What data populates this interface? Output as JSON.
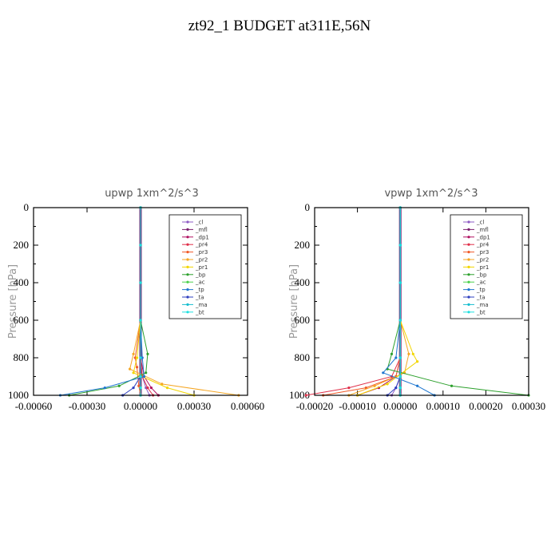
{
  "title": "zt92_1  BUDGET at311E,56N",
  "legend_entries": [
    {
      "name": "_cl",
      "color": "#8e5bc4"
    },
    {
      "name": "_mfl",
      "color": "#7a1f6e"
    },
    {
      "name": "_dp1",
      "color": "#b01060"
    },
    {
      "name": "_pr4",
      "color": "#e0304a"
    },
    {
      "name": "_pr3",
      "color": "#f05a28"
    },
    {
      "name": "_pr2",
      "color": "#f5a623"
    },
    {
      "name": "_pr1",
      "color": "#f2d600"
    },
    {
      "name": "_bp",
      "color": "#2ca02c"
    },
    {
      "name": "_ac",
      "color": "#4bd14b"
    },
    {
      "name": "_tp",
      "color": "#1f77d0"
    },
    {
      "name": "_ta",
      "color": "#2f3fbf"
    },
    {
      "name": "_ma",
      "color": "#17becf"
    },
    {
      "name": "_bt",
      "color": "#20e0e0"
    }
  ],
  "chart_data": [
    {
      "type": "line",
      "title": "upwp   1xm^2/s^3",
      "ylabel": "Pressure [hPa]",
      "xlim": [
        -0.0006,
        0.0006
      ],
      "ylim": [
        1000,
        0
      ],
      "xticks": [
        -0.0006,
        -0.0003,
        0.0,
        0.0003,
        0.0006
      ],
      "xtick_labels": [
        "-0.00060",
        "-0.00030",
        "0.00000",
        "0.00030",
        "0.00060"
      ],
      "yticks": [
        0,
        200,
        400,
        600,
        800,
        1000
      ],
      "ytick_labels": [
        "0",
        "200",
        "400",
        "600",
        "800",
        "1000"
      ],
      "legend_position": "top-right",
      "series": [
        {
          "name": "_cl",
          "x": [
            0,
            0,
            0,
            0,
            0,
            1e-05,
            3e-05,
            5e-05
          ],
          "y": [
            0,
            200,
            400,
            600,
            800,
            900,
            960,
            1000
          ]
        },
        {
          "name": "_mfl",
          "x": [
            0,
            0,
            0,
            0,
            0,
            0,
            0,
            0
          ],
          "y": [
            0,
            200,
            400,
            600,
            800,
            900,
            960,
            1000
          ]
        },
        {
          "name": "_dp1",
          "x": [
            0,
            0,
            0,
            0,
            0,
            2e-05,
            6e-05,
            0.0001
          ],
          "y": [
            0,
            200,
            400,
            600,
            800,
            900,
            960,
            1000
          ]
        },
        {
          "name": "_pr4",
          "x": [
            0,
            0,
            0,
            0,
            0,
            1e-05,
            4e-05,
            7e-05
          ],
          "y": [
            0,
            200,
            400,
            600,
            800,
            900,
            960,
            1000
          ]
        },
        {
          "name": "_pr3",
          "x": [
            0,
            0,
            0,
            0,
            -3e-05,
            -2e-05,
            -1e-05,
            0
          ],
          "y": [
            0,
            200,
            400,
            600,
            800,
            850,
            950,
            1000
          ]
        },
        {
          "name": "_pr2",
          "x": [
            0,
            0,
            0,
            0,
            -4e-05,
            -6e-05,
            0.00012,
            0.00055
          ],
          "y": [
            0,
            200,
            400,
            600,
            780,
            860,
            940,
            1000
          ]
        },
        {
          "name": "_pr1",
          "x": [
            0,
            0,
            0,
            0,
            -2e-05,
            -4e-05,
            0.00015,
            0.0003
          ],
          "y": [
            0,
            200,
            400,
            600,
            800,
            880,
            960,
            1000
          ]
        },
        {
          "name": "_bp",
          "x": [
            0,
            0,
            0,
            0,
            4e-05,
            3e-05,
            -0.00012,
            -0.0004
          ],
          "y": [
            0,
            200,
            400,
            600,
            780,
            880,
            950,
            1000
          ]
        },
        {
          "name": "_ac",
          "x": [
            0,
            0,
            0,
            0,
            0,
            0,
            0,
            0
          ],
          "y": [
            0,
            200,
            400,
            600,
            800,
            900,
            960,
            1000
          ]
        },
        {
          "name": "_tp",
          "x": [
            0,
            0,
            0,
            0,
            1e-05,
            2e-05,
            -0.0002,
            -0.00045
          ],
          "y": [
            0,
            200,
            400,
            600,
            800,
            900,
            960,
            1000
          ]
        },
        {
          "name": "_ta",
          "x": [
            0,
            0,
            0,
            0,
            0,
            0,
            -4e-05,
            -0.0001
          ],
          "y": [
            0,
            200,
            400,
            600,
            800,
            900,
            960,
            1000
          ]
        },
        {
          "name": "_ma",
          "x": [
            0,
            0,
            0,
            0,
            0,
            0,
            0,
            0
          ],
          "y": [
            0,
            200,
            400,
            600,
            800,
            900,
            960,
            1000
          ]
        },
        {
          "name": "_bt",
          "x": [
            0,
            0,
            0,
            0,
            0,
            0,
            0,
            0
          ],
          "y": [
            0,
            200,
            400,
            600,
            800,
            900,
            960,
            1000
          ]
        }
      ]
    },
    {
      "type": "line",
      "title": "vpwp   1xm^2/s^3",
      "ylabel": "Pressure [hPa]",
      "xlim": [
        -0.0002,
        0.0003
      ],
      "ylim": [
        1000,
        0
      ],
      "xticks": [
        -0.0002,
        -0.0001,
        0.0,
        0.0001,
        0.0002,
        0.0003
      ],
      "xtick_labels": [
        "-0.00020",
        "-0.00010",
        "0.00000",
        "0.00010",
        "0.00020",
        "0.00030"
      ],
      "yticks": [
        0,
        200,
        400,
        600,
        800,
        1000
      ],
      "ytick_labels": [
        "0",
        "200",
        "400",
        "600",
        "800",
        "1000"
      ],
      "legend_position": "top-right",
      "series": [
        {
          "name": "_cl",
          "x": [
            0,
            0,
            0,
            0,
            0,
            0,
            -1e-05,
            -2e-05
          ],
          "y": [
            0,
            200,
            400,
            600,
            800,
            900,
            960,
            1000
          ]
        },
        {
          "name": "_mfl",
          "x": [
            0,
            0,
            0,
            0,
            0,
            0,
            0,
            0
          ],
          "y": [
            0,
            200,
            400,
            600,
            800,
            900,
            960,
            1000
          ]
        },
        {
          "name": "_dp1",
          "x": [
            0,
            0,
            0,
            0,
            0,
            -1e-05,
            -5e-05,
            -0.0001
          ],
          "y": [
            0,
            200,
            400,
            600,
            800,
            900,
            960,
            1000
          ]
        },
        {
          "name": "_pr4",
          "x": [
            0,
            0,
            0,
            0,
            0,
            -2e-05,
            -0.00012,
            -0.00022
          ],
          "y": [
            0,
            200,
            400,
            600,
            800,
            900,
            960,
            1000
          ]
        },
        {
          "name": "_pr3",
          "x": [
            0,
            0,
            0,
            0,
            0,
            -1e-05,
            -8e-05,
            -0.00018
          ],
          "y": [
            0,
            200,
            400,
            600,
            800,
            900,
            960,
            1000
          ]
        },
        {
          "name": "_pr2",
          "x": [
            0,
            0,
            0,
            0,
            2e-05,
            1e-05,
            -6e-05,
            -0.00012
          ],
          "y": [
            0,
            200,
            400,
            600,
            780,
            880,
            950,
            1000
          ]
        },
        {
          "name": "_pr1",
          "x": [
            0,
            0,
            0,
            0,
            3e-05,
            4e-05,
            -3e-05,
            -0.0001
          ],
          "y": [
            0,
            200,
            400,
            600,
            780,
            820,
            940,
            1000
          ]
        },
        {
          "name": "_bp",
          "x": [
            0,
            0,
            0,
            0,
            -2e-05,
            -3e-05,
            0.00012,
            0.0003
          ],
          "y": [
            0,
            200,
            400,
            600,
            780,
            860,
            950,
            1000
          ]
        },
        {
          "name": "_ac",
          "x": [
            0,
            0,
            0,
            0,
            0,
            0,
            0,
            0
          ],
          "y": [
            0,
            200,
            400,
            600,
            800,
            900,
            960,
            1000
          ]
        },
        {
          "name": "_tp",
          "x": [
            0,
            0,
            0,
            0,
            -1e-05,
            -4e-05,
            4e-05,
            8e-05
          ],
          "y": [
            0,
            200,
            400,
            600,
            800,
            880,
            950,
            1000
          ]
        },
        {
          "name": "_ta",
          "x": [
            0,
            0,
            0,
            0,
            0,
            0,
            -1e-05,
            -3e-05
          ],
          "y": [
            0,
            200,
            400,
            600,
            800,
            900,
            960,
            1000
          ]
        },
        {
          "name": "_ma",
          "x": [
            0,
            0,
            0,
            0,
            0,
            0,
            0,
            0
          ],
          "y": [
            0,
            200,
            400,
            600,
            800,
            900,
            960,
            1000
          ]
        },
        {
          "name": "_bt",
          "x": [
            0,
            0,
            0,
            0,
            0,
            0,
            0,
            0
          ],
          "y": [
            0,
            200,
            400,
            600,
            800,
            900,
            960,
            1000
          ]
        }
      ]
    }
  ]
}
